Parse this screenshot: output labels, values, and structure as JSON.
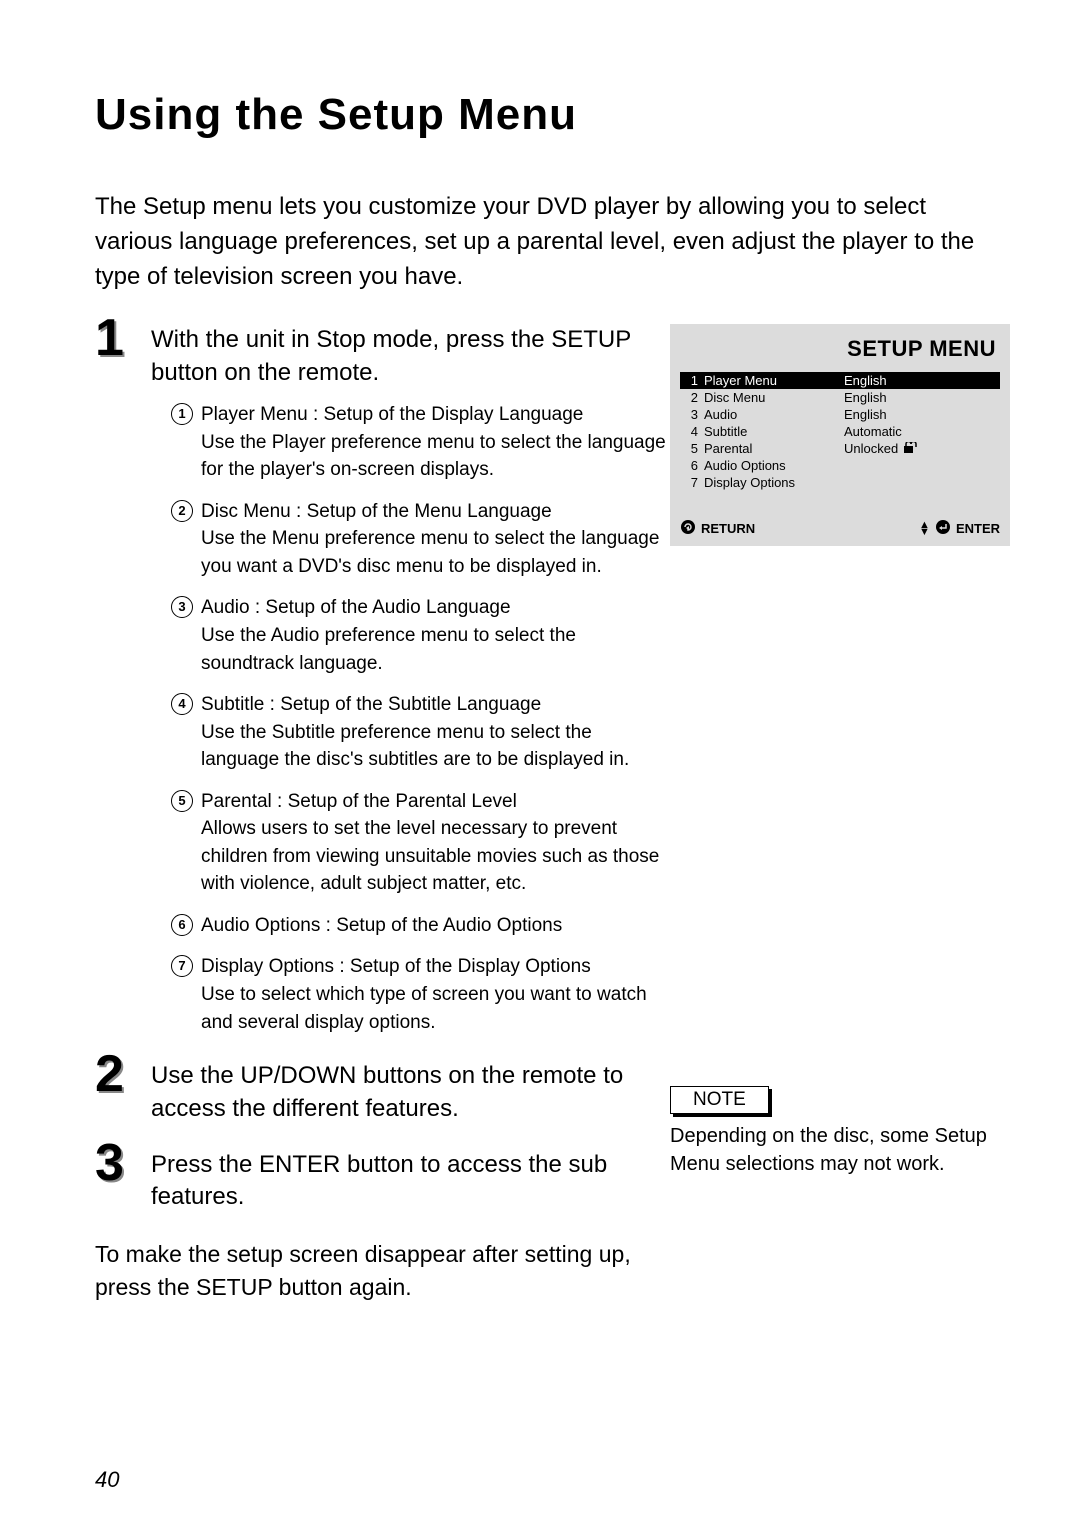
{
  "title": "Using the Setup Menu",
  "intro": "The Setup menu lets you customize your DVD player by allowing you to select various language preferences, set up a parental level, even adjust the player to the type of television screen you have.",
  "steps": {
    "s1": {
      "num_fg": "1",
      "num_sh": "1",
      "head": "With the unit in Stop mode, press the SETUP button on the remote.",
      "items": [
        {
          "n": "1",
          "txt": "Player Menu : Setup of the Display Language\nUse the Player preference menu to select the language for the player's on-screen displays."
        },
        {
          "n": "2",
          "txt": "Disc Menu : Setup of the Menu Language\nUse the Menu preference menu to select the language you want a DVD's disc menu to be displayed in."
        },
        {
          "n": "3",
          "txt": "Audio : Setup of the Audio Language\nUse the Audio preference menu to select the soundtrack language."
        },
        {
          "n": "4",
          "txt": "Subtitle : Setup of the Subtitle Language\nUse the Subtitle preference menu to select the language the disc's subtitles are to be displayed in."
        },
        {
          "n": "5",
          "txt": "Parental : Setup of the Parental Level\nAllows users to set the level necessary to prevent children from viewing unsuitable movies such as those with violence, adult subject matter, etc."
        },
        {
          "n": "6",
          "txt": "Audio Options : Setup of the Audio Options"
        },
        {
          "n": "7",
          "txt": "Display Options : Setup of the Display Options\nUse to select which type of screen you want to watch and several display options."
        }
      ]
    },
    "s2": {
      "num_fg": "2",
      "num_sh": "2",
      "head": "Use the UP/DOWN buttons on the remote to access the different features."
    },
    "s3": {
      "num_fg": "3",
      "num_sh": "3",
      "head": "Press the ENTER button to access the sub features."
    }
  },
  "closing": "To make the setup screen disappear after setting up, press the SETUP button again.",
  "setup_menu": {
    "title": "SETUP MENU",
    "bg": "#dcdcdc",
    "sel_bg": "#000000",
    "sel_fg": "#ffffff",
    "rows": [
      {
        "n": "1",
        "label": "Player Menu",
        "val": "English",
        "sel": true
      },
      {
        "n": "2",
        "label": "Disc Menu",
        "val": "English",
        "sel": false
      },
      {
        "n": "3",
        "label": "Audio",
        "val": "English",
        "sel": false
      },
      {
        "n": "4",
        "label": "Subtitle",
        "val": "Automatic",
        "sel": false
      },
      {
        "n": "5",
        "label": "Parental",
        "val": "Unlocked",
        "sel": false,
        "lock": true
      },
      {
        "n": "6",
        "label": "Audio Options",
        "val": "",
        "sel": false
      },
      {
        "n": "7",
        "label": "Display Options",
        "val": "",
        "sel": false
      }
    ],
    "footer": {
      "return": "RETURN",
      "enter": "ENTER"
    }
  },
  "note": {
    "label": "NOTE",
    "text": "Depending on the disc, some Setup Menu selections may not work."
  },
  "page_number": "40"
}
